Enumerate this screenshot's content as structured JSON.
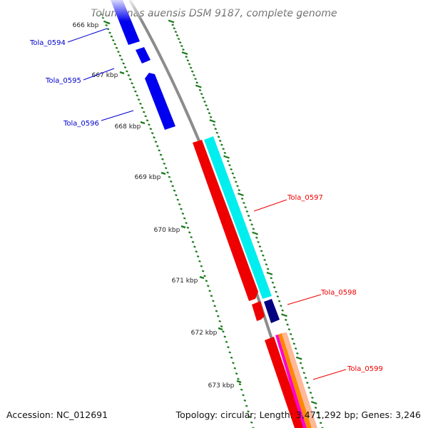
{
  "title": "Tolumonas auensis DSM 9187, complete genome",
  "footer": {
    "accession": "Accession: NC_012691",
    "info": "Topology: circular; Length: 3,471,292 bp; Genes: 3,246"
  },
  "ticks": [
    "666 kbp",
    "667 kbp",
    "668 kbp",
    "669 kbp",
    "670 kbp",
    "671 kbp",
    "672 kbp",
    "673 kbp"
  ],
  "genes": [
    {
      "name": "Tola_0594",
      "color": "#0000cc",
      "strand": "reverse"
    },
    {
      "name": "Tola_0595",
      "color": "#0000cc",
      "strand": "reverse"
    },
    {
      "name": "Tola_0596",
      "color": "#0000cc",
      "strand": "reverse"
    },
    {
      "name": "Tola_0597",
      "color": "#ee0000",
      "strand": "forward"
    },
    {
      "name": "Tola_0598",
      "color": "#ee0000",
      "strand": "forward"
    },
    {
      "name": "Tola_0599",
      "color": "#ee0000",
      "strand": "forward"
    }
  ],
  "colors": {
    "backbone": "#8c8c8c",
    "cds_forward": "#ee0000",
    "cds_reverse": "#0000ee",
    "feature_cyan": "#00eeee",
    "feature_navy": "#000080",
    "gc_ticks": "#1a7a1a"
  }
}
